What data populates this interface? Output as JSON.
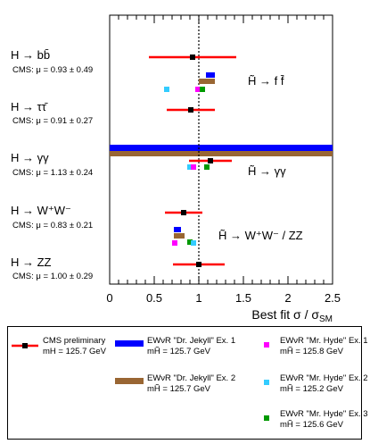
{
  "chart_data": {
    "type": "scatter",
    "xlabel": "Best fit σ / σSM",
    "xlim": [
      0,
      2.5
    ],
    "xticks": [
      "0",
      "0.5",
      "1",
      "1.5",
      "2",
      "2.5"
    ],
    "reference_line_x": 1,
    "channels": [
      {
        "label": "H → bb̄",
        "cms_text": "CMS: μ = 0.93 ± 0.49",
        "mu": 0.93,
        "err": 0.49
      },
      {
        "label": "H → ττ̄",
        "cms_text": "CMS: μ = 0.91 ± 0.27",
        "mu": 0.91,
        "err": 0.27
      },
      {
        "label": "H → γγ",
        "cms_text": "CMS: μ = 1.13 ± 0.24",
        "mu": 1.13,
        "err": 0.24
      },
      {
        "label": "H → W⁺W⁻",
        "cms_text": "CMS: μ = 0.83 ± 0.21",
        "mu": 0.83,
        "err": 0.21
      },
      {
        "label": "H → ZZ",
        "cms_text": "CMS: μ = 1.00 ± 0.29",
        "mu": 1.0,
        "err": 0.29
      }
    ],
    "model_predictions": [
      {
        "group": "H̃ → f f̄",
        "jekyll1": [
          1.08,
          1.18
        ],
        "jekyll2": [
          1.0,
          1.18
        ],
        "hyde1": 0.99,
        "hyde2": 0.64,
        "hyde3": 1.04
      },
      {
        "group": "H̃ → γγ",
        "jekyll1": [
          0,
          2.5
        ],
        "jekyll2": [
          0,
          2.5
        ],
        "hyde1": 0.94,
        "hyde2": 0.9,
        "hyde3": 1.09
      },
      {
        "group": "H̃ → W⁺W⁻ / ZZ",
        "jekyll1": [
          0.72,
          0.8
        ],
        "jekyll2": [
          0.72,
          0.84
        ],
        "hyde1": 0.73,
        "hyde2": 0.94,
        "hyde3": 0.9
      }
    ],
    "colors": {
      "cms": "#ff0000",
      "jekyll1": "#0000ff",
      "jekyll2": "#996633",
      "hyde1": "#ff00ff",
      "hyde2": "#33ccff",
      "hyde3": "#009900"
    },
    "legend": [
      {
        "key": "cms",
        "name": "CMS preliminary",
        "sub": "mH = 125.7 GeV"
      },
      {
        "key": "jekyll1",
        "name": "EWνR \"Dr. Jekyll\" Ex. 1",
        "sub": "mH̃ = 125.7 GeV"
      },
      {
        "key": "jekyll2",
        "name": "EWνR \"Dr. Jekyll\" Ex. 2",
        "sub": "mH̃ = 125.7 GeV"
      },
      {
        "key": "hyde1",
        "name": "EWνR \"Mr. Hyde\" Ex. 1",
        "sub": "mH̃ = 125.8 GeV"
      },
      {
        "key": "hyde2",
        "name": "EWνR \"Mr. Hyde\" Ex. 2",
        "sub": "mH̃ = 125.2 GeV"
      },
      {
        "key": "hyde3",
        "name": "EWνR \"Mr. Hyde\" Ex. 3",
        "sub": "mH̃ = 125.6 GeV"
      }
    ]
  }
}
